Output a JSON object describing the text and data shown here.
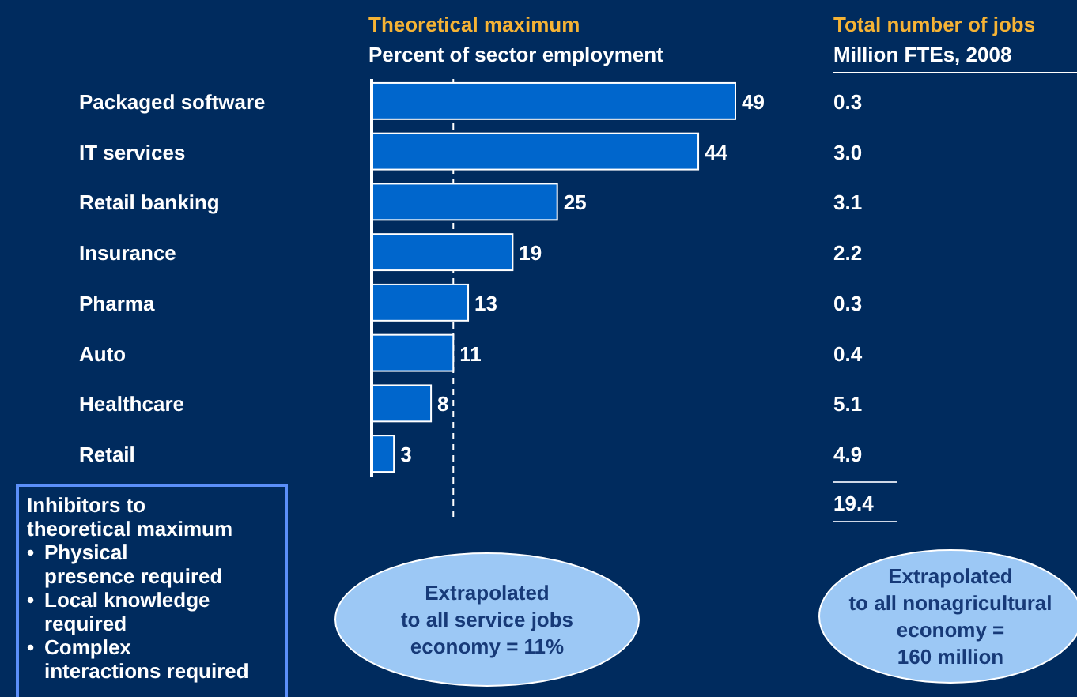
{
  "chart_data": {
    "type": "bar",
    "orientation": "horizontal",
    "title": "Theoretical maximum",
    "subtitle": "Percent of sector employment",
    "categories": [
      "Packaged software",
      "IT services",
      "Retail banking",
      "Insurance",
      "Pharma",
      "Auto",
      "Healthcare",
      "Retail"
    ],
    "values": [
      49,
      44,
      25,
      19,
      13,
      11,
      8,
      3
    ],
    "color": "#0066cc",
    "data_labels": true,
    "xlim": [
      0,
      49
    ],
    "ref_lines": [
      {
        "axis": "x",
        "value": 11,
        "line_style": "dashed",
        "color": "#ffffff"
      }
    ],
    "annotations": [
      "Total number of jobs",
      "Million FTEs, 2008",
      "0.3",
      "3.0",
      "3.1",
      "2.2",
      "0.3",
      "0.4",
      "5.1",
      "4.9",
      "19.4",
      "Inhibitors to\ntheoretical maximum\n• Physical\npresence required\n• Local knowledge\nrequired\n• Complex\ninteractions required",
      "Extrapolated\nto all service jobs\neconomy = 11%",
      "Extrapolated\nto all nonagricultural\neconomy =\n160 million"
    ]
  }
}
